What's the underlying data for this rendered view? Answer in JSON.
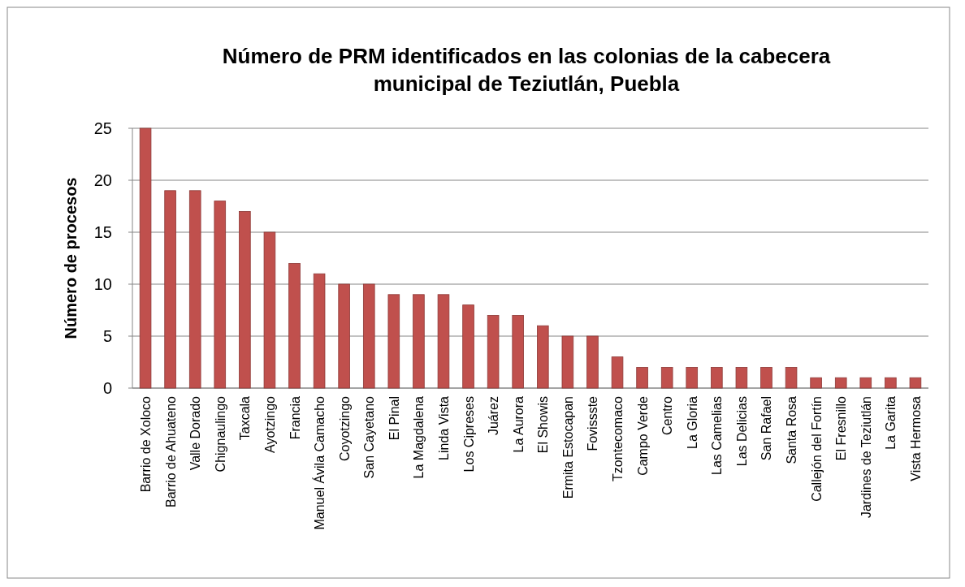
{
  "chart_data": {
    "type": "bar",
    "title": "Número de PRM identificados en las colonias de la cabecera municipal de Teziutlán, Puebla",
    "ylabel": "Número de procesos",
    "categories": [
      "Barrio de Xoloco",
      "Barrio de Ahuateno",
      "Valle Dorado",
      "Chignaulingo",
      "Taxcala",
      "Ayotzingo",
      "Francia",
      "Manuel Ávila Camacho",
      "Coyotzingo",
      "San Cayetano",
      "El Pinal",
      "La Magdalena",
      "Linda Vista",
      "Los Cipreses",
      "Juárez",
      "La Aurora",
      "El Showis",
      "Ermita Estocapan",
      "Fovissste",
      "Tzontecomaco",
      "Campo Verde",
      "Centro",
      "La Gloria",
      "Las Camelias",
      "Las Delicias",
      "San Rafael",
      "Santa Rosa",
      "Callejón del Fortín",
      "El Fresnillo",
      "Jardines de Teziutlán",
      "La Garita",
      "Vista Hermosa"
    ],
    "values": [
      25,
      19,
      19,
      18,
      17,
      15,
      12,
      11,
      10,
      10,
      9,
      9,
      9,
      8,
      7,
      7,
      6,
      5,
      5,
      3,
      2,
      2,
      2,
      2,
      2,
      2,
      2,
      1,
      1,
      1,
      1,
      1
    ],
    "color": "#c0504d",
    "ylim": [
      0,
      25
    ],
    "yticks": [
      0,
      5,
      10,
      15,
      20,
      25
    ],
    "grid": "y"
  }
}
